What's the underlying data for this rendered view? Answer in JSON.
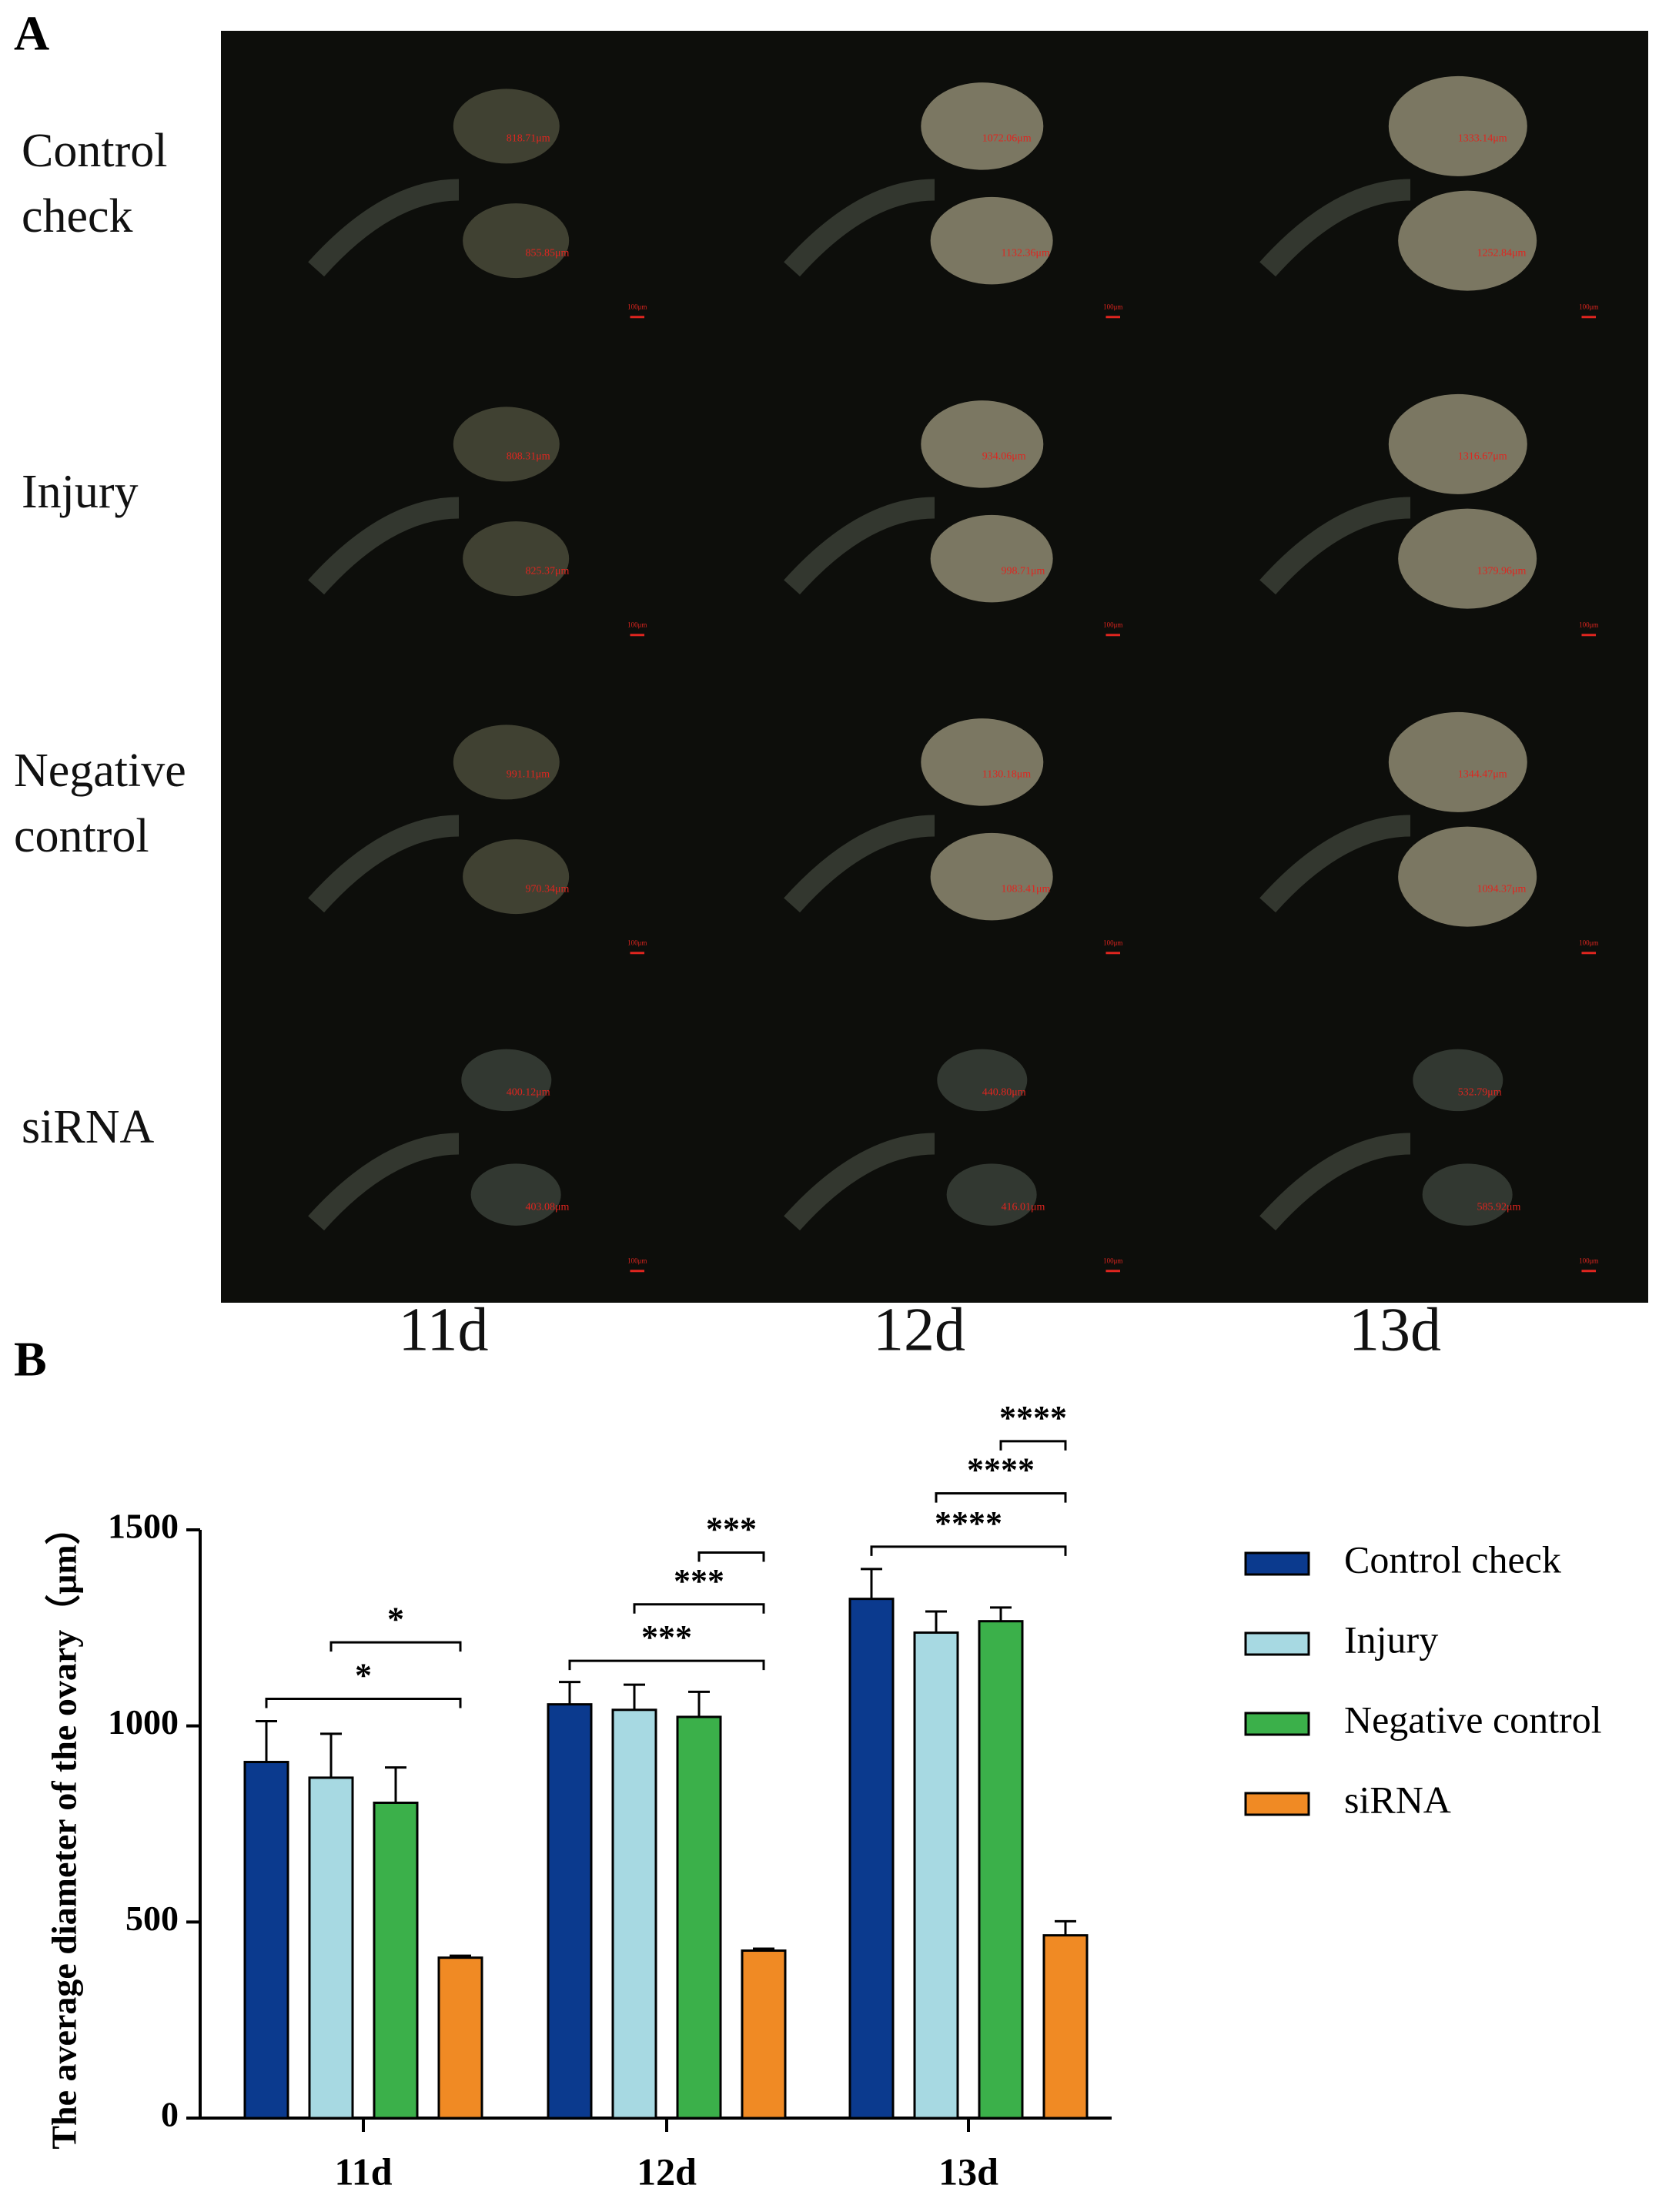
{
  "panel_a": {
    "label": "A",
    "rows": [
      "Control check",
      "Injury",
      "Negative control",
      "siRNA"
    ],
    "columns": [
      "11d",
      "12d",
      "13d"
    ],
    "measurements": [
      [
        [
          "818.71μm",
          "855.85μm"
        ],
        [
          "1072.06μm",
          "1132.36μm"
        ],
        [
          "1333.14μm",
          "1252.84μm"
        ]
      ],
      [
        [
          "808.31μm",
          "825.37μm"
        ],
        [
          "934.06μm",
          "998.71μm"
        ],
        [
          "1316.67μm",
          "1379.96μm"
        ]
      ],
      [
        [
          "991.11μm",
          "970.34μm"
        ],
        [
          "1130.18μm",
          "1083.41μm"
        ],
        [
          "1344.47μm",
          "1094.37μm"
        ]
      ],
      [
        [
          "400.12μm",
          "403.08μm"
        ],
        [
          "440.80μm",
          "416.01μm"
        ],
        [
          "532.79μm",
          "585.92μm"
        ]
      ]
    ],
    "scale_bar": "100μm"
  },
  "chart_data": {
    "type": "bar",
    "label": "B",
    "y_label": "The average diameter of the ovary（μm）",
    "categories": [
      "11d",
      "12d",
      "13d"
    ],
    "series": [
      {
        "name": "Control check",
        "color": "#0b3a8e",
        "values": [
          908,
          1055,
          1324
        ],
        "errors": [
          104,
          57,
          76
        ]
      },
      {
        "name": "Injury",
        "color": "#a7d9e2",
        "values": [
          868,
          1041,
          1238
        ],
        "errors": [
          112,
          64,
          54
        ]
      },
      {
        "name": "Negative control",
        "color": "#3bb04a",
        "values": [
          804,
          1023,
          1267
        ],
        "errors": [
          90,
          64,
          35
        ]
      },
      {
        "name": "siRNA",
        "color": "#f08a24",
        "values": [
          409,
          427,
          466
        ],
        "errors": [
          5,
          5,
          36
        ]
      }
    ],
    "significance": [
      [
        "*",
        "*"
      ],
      [
        "***",
        "***",
        "***"
      ],
      [
        "****",
        "****",
        "****"
      ]
    ],
    "ylim": [
      0,
      1500
    ],
    "yticks": [
      0,
      500,
      1000,
      1500
    ],
    "legend": "right"
  }
}
